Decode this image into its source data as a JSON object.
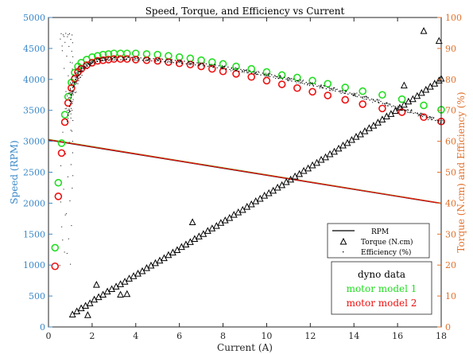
{
  "chart_data": {
    "type": "scatter",
    "title": "Speed, Torque, and Efficiency vs Current",
    "xlabel": "Current (A)",
    "ylabel_left": "Speed (RPM)",
    "ylabel_right": "Torque (N.cm) and Efficiency (%)",
    "xlim": [
      0,
      18
    ],
    "ylim_left": [
      0,
      5000
    ],
    "ylim_right": [
      0,
      100
    ],
    "x_ticks": [
      0,
      2,
      4,
      6,
      8,
      10,
      12,
      14,
      16,
      18
    ],
    "y_left_ticks": [
      0,
      500,
      1000,
      1500,
      2000,
      2500,
      3000,
      3500,
      4000,
      4500,
      5000
    ],
    "y_right_ticks": [
      0,
      10,
      20,
      30,
      40,
      50,
      60,
      70,
      80,
      90,
      100
    ],
    "grid": false,
    "colors": {
      "left_axis": "#3a88c8",
      "right_axis": "#e0712c",
      "dyno": "#000000",
      "model1": "#22dd22",
      "model2": "#ee1111"
    },
    "legend_series": {
      "position": "lower-right",
      "entries": [
        "RPM",
        "Torque (N.cm)",
        "Efficiency (%)"
      ]
    },
    "legend_sources": {
      "title": "dyno data",
      "entries": [
        "motor model 1",
        "motor model 2"
      ]
    },
    "series": [
      {
        "name": "RPM",
        "source": "dyno data",
        "axis": "left",
        "style": "line",
        "x": [
          0,
          18
        ],
        "y": [
          3020,
          1995
        ]
      },
      {
        "name": "RPM",
        "source": "motor model 1",
        "axis": "left",
        "style": "line",
        "x": [
          0,
          18
        ],
        "y": [
          3030,
          2000
        ]
      },
      {
        "name": "RPM",
        "source": "motor model 2",
        "axis": "left",
        "style": "line",
        "x": [
          0,
          18
        ],
        "y": [
          3025,
          1998
        ]
      },
      {
        "name": "Torque (N.cm)",
        "source": "dyno data",
        "axis": "right",
        "style": "triangle",
        "x": [
          1.1,
          1.3,
          1.5,
          1.7,
          1.9,
          2.1,
          2.3,
          2.5,
          2.7,
          2.9,
          3.1,
          3.3,
          3.5,
          3.7,
          3.9,
          4.1,
          4.3,
          4.5,
          4.7,
          4.9,
          5.1,
          5.3,
          5.5,
          5.7,
          5.9,
          6.1,
          6.3,
          6.5,
          6.7,
          6.9,
          7.1,
          7.3,
          7.5,
          7.7,
          7.9,
          8.1,
          8.3,
          8.5,
          8.7,
          8.9,
          9.1,
          9.3,
          9.5,
          9.7,
          9.9,
          10.1,
          10.3,
          10.5,
          10.7,
          10.9,
          11.1,
          11.3,
          11.5,
          11.7,
          11.9,
          12.1,
          12.3,
          12.5,
          12.7,
          12.9,
          13.1,
          13.3,
          13.5,
          13.7,
          13.9,
          14.1,
          14.3,
          14.5,
          14.7,
          14.9,
          15.1,
          15.3,
          15.5,
          15.7,
          15.9,
          16.1,
          16.3,
          16.5,
          16.7,
          16.9,
          17.1,
          17.3,
          17.5,
          17.7,
          17.9,
          18.0,
          2.2,
          1.8,
          3.3,
          3.6,
          6.6,
          16.3,
          17.2,
          17.9
        ],
        "y": [
          4.0,
          5.0,
          6.0,
          6.8,
          7.6,
          8.8,
          9.6,
          10.4,
          11.4,
          12.2,
          13.0,
          13.8,
          14.6,
          15.6,
          16.4,
          17.2,
          18.0,
          19.0,
          19.8,
          20.6,
          21.4,
          22.2,
          23.2,
          24.0,
          24.8,
          25.8,
          26.6,
          27.4,
          28.4,
          29.2,
          30.0,
          31.0,
          31.8,
          32.6,
          33.6,
          34.4,
          35.2,
          36.2,
          37.0,
          37.8,
          38.8,
          39.6,
          40.6,
          41.4,
          42.4,
          43.2,
          44.0,
          45.0,
          45.8,
          46.8,
          47.6,
          48.6,
          49.4,
          50.4,
          51.2,
          52.2,
          53.0,
          54.0,
          54.8,
          55.8,
          56.6,
          57.6,
          58.6,
          59.4,
          60.4,
          61.4,
          62.2,
          63.2,
          64.2,
          65.0,
          66.0,
          67.0,
          68.0,
          68.8,
          69.8,
          70.8,
          71.8,
          72.8,
          73.6,
          74.6,
          75.6,
          76.6,
          77.6,
          78.6,
          79.6,
          80.2,
          13.6,
          3.8,
          10.4,
          10.6,
          33.8,
          78.0,
          95.6,
          92.4
        ]
      },
      {
        "name": "Efficiency (%)",
        "source": "motor model 1",
        "axis": "right",
        "style": "circle",
        "x": [
          0.3,
          0.45,
          0.6,
          0.75,
          0.9,
          1.05,
          1.2,
          1.35,
          1.5,
          1.75,
          2.0,
          2.25,
          2.5,
          2.75,
          3.0,
          3.3,
          3.6,
          4.0,
          4.5,
          5.0,
          5.5,
          6.0,
          6.5,
          7.0,
          7.5,
          8.0,
          8.6,
          9.3,
          10.0,
          10.7,
          11.4,
          12.1,
          12.8,
          13.6,
          14.4,
          15.3,
          16.2,
          17.2,
          18.0
        ],
        "y": [
          25.6,
          46.6,
          59.4,
          68.6,
          74.4,
          79.0,
          82.2,
          84.2,
          85.4,
          86.4,
          87.2,
          87.6,
          88.0,
          88.2,
          88.4,
          88.4,
          88.4,
          88.4,
          88.2,
          88.0,
          87.6,
          87.2,
          86.8,
          86.2,
          85.6,
          85.0,
          84.2,
          83.4,
          82.4,
          81.4,
          80.6,
          79.6,
          78.6,
          77.4,
          76.2,
          75.0,
          73.6,
          71.6,
          70.2
        ]
      },
      {
        "name": "Efficiency (%)",
        "source": "motor model 2",
        "axis": "right",
        "style": "circle",
        "x": [
          0.3,
          0.45,
          0.6,
          0.75,
          0.9,
          1.05,
          1.2,
          1.35,
          1.5,
          1.75,
          2.0,
          2.25,
          2.5,
          2.75,
          3.0,
          3.3,
          3.6,
          4.0,
          4.5,
          5.0,
          5.5,
          6.0,
          6.5,
          7.0,
          7.5,
          8.0,
          8.6,
          9.3,
          10.0,
          10.7,
          11.4,
          12.1,
          12.8,
          13.6,
          14.4,
          15.3,
          16.2,
          17.2,
          18.0
        ],
        "y": [
          19.6,
          42.2,
          56.2,
          66.2,
          72.4,
          77.2,
          80.2,
          82.4,
          83.4,
          84.6,
          85.4,
          86.0,
          86.2,
          86.4,
          86.6,
          86.6,
          86.6,
          86.4,
          86.2,
          86.0,
          85.6,
          85.2,
          84.8,
          84.2,
          83.4,
          82.6,
          81.8,
          80.8,
          79.6,
          78.4,
          77.2,
          76.0,
          74.8,
          73.4,
          72.0,
          70.6,
          69.4,
          67.8,
          66.4
        ]
      },
      {
        "name": "Efficiency (%)",
        "source": "dyno data",
        "axis": "right",
        "style": "dots",
        "x": [
          0.9,
          1.0,
          1.1,
          1.25,
          1.4,
          1.6,
          1.8,
          2.0,
          2.3,
          2.6,
          3.0,
          3.5,
          4.0,
          4.5,
          5.0,
          5.5,
          6.0,
          6.5,
          7.0,
          7.5,
          8.0,
          8.5,
          9.0,
          9.5,
          10.0,
          10.5,
          11.0,
          11.5,
          12.0,
          12.5,
          13.0,
          13.5,
          14.0,
          14.5,
          15.0,
          15.5,
          16.0,
          16.5,
          17.0,
          17.5,
          18.0
        ],
        "y": [
          69.0,
          74.0,
          77.5,
          80.5,
          82.5,
          84.0,
          85.0,
          85.8,
          86.4,
          86.7,
          86.9,
          86.9,
          86.8,
          86.6,
          86.4,
          86.1,
          85.8,
          85.4,
          85.0,
          84.5,
          84.0,
          83.4,
          82.8,
          82.2,
          81.6,
          80.9,
          80.2,
          79.4,
          78.6,
          77.8,
          77.0,
          76.1,
          75.2,
          74.2,
          73.2,
          72.1,
          71.0,
          69.9,
          68.8,
          67.6,
          66.4
        ]
      }
    ]
  }
}
